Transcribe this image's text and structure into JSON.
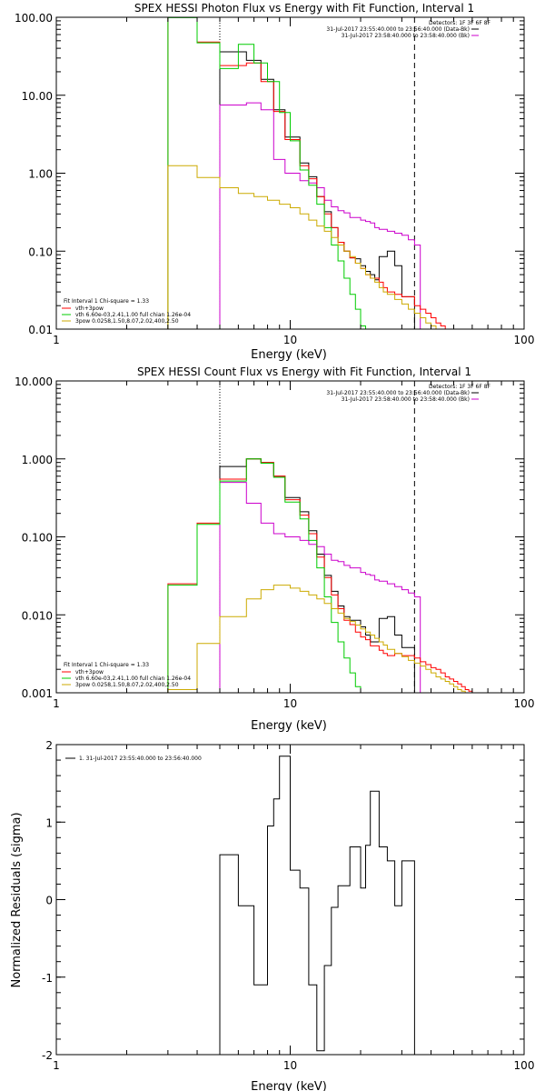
{
  "chart_data": [
    {
      "type": "line",
      "title": "SPEX HESSI Photon Flux vs Energy with Fit Function, Interval 1",
      "xlabel": "Energy (keV)",
      "ylabel": "",
      "xscale": "log",
      "yscale": "log",
      "xlim": [
        1,
        100
      ],
      "ylim": [
        0.01,
        100
      ],
      "x_ticks": [
        1,
        10,
        100
      ],
      "y_ticks": [
        0.01,
        0.1,
        1,
        10,
        100
      ],
      "x_tick_labels": [
        "1",
        "10",
        "100"
      ],
      "y_tick_labels": [
        "0.01",
        "0.10",
        "1.00",
        "10.00",
        "100.00"
      ],
      "info": [
        "Detectors: 1F 3F 6F 8F",
        "31-Jul-2017 23:55:40.000 to 23:56:40.000 (Data-Bk)",
        "31-Jul-2017 23:58:40.000 to 23:58:40.000 (Bk)"
      ],
      "legend_title": "Fit Interval 1   Chi-square = 1.33",
      "bin_edges": [
        3,
        4,
        5,
        6,
        6.5,
        7,
        7.5,
        8,
        8.5,
        9,
        9.5,
        10,
        11,
        12,
        13,
        14,
        15,
        16,
        17,
        18,
        19,
        20,
        21,
        22,
        23,
        24,
        25,
        26,
        28,
        30,
        32,
        34,
        36,
        38,
        40,
        42,
        44,
        46
      ],
      "vlines": [
        {
          "x": 5,
          "style": "dotted"
        },
        {
          "x": 34,
          "style": "dashed"
        }
      ],
      "series": [
        {
          "name": "Data-Bk",
          "color": "#000000",
          "from": 2,
          "values": [
            36,
            36,
            28,
            28,
            16,
            16,
            6.5,
            6.5,
            2.9,
            2.9,
            1.35,
            0.9,
            0.5,
            0.32,
            0.2,
            0.13,
            0.1,
            0.082,
            0.08,
            0.065,
            0.055,
            0.05,
            0.043,
            0.085,
            0.085,
            0.1,
            0.065,
            0.026,
            0.026
          ]
        },
        {
          "name": "Bk",
          "color": "#cc00cc",
          "from": 2,
          "values": [
            7.5,
            7.5,
            8,
            8,
            6.5,
            6.5,
            1.5,
            1.5,
            1.0,
            1.0,
            0.8,
            0.75,
            0.65,
            0.45,
            0.37,
            0.33,
            0.31,
            0.27,
            0.27,
            0.25,
            0.24,
            0.23,
            0.2,
            0.19,
            0.19,
            0.18,
            0.17,
            0.16,
            0.14,
            0.12
          ]
        },
        {
          "name": "vth+3pow",
          "color": "#ff0000",
          "from": 0,
          "values": [
            100,
            48,
            24,
            24,
            26,
            26,
            15,
            15,
            6.2,
            6.2,
            2.7,
            2.7,
            1.25,
            0.85,
            0.5,
            0.3,
            0.2,
            0.13,
            0.1,
            0.082,
            0.07,
            0.06,
            0.05,
            0.045,
            0.045,
            0.04,
            0.034,
            0.03,
            0.028,
            0.026,
            0.026,
            0.02,
            0.018,
            0.016,
            0.014,
            0.012,
            0.011
          ]
        },
        {
          "name": "vth 6.60e-03,2.41,1.00  full chian 1.26e-04",
          "color": "#00cc00",
          "from": 0,
          "values": [
            99,
            47,
            22,
            45,
            45,
            26,
            26,
            15,
            15,
            6,
            6,
            2.6,
            1.1,
            0.7,
            0.4,
            0.2,
            0.12,
            0.075,
            0.045,
            0.028,
            0.018,
            0.011
          ]
        },
        {
          "name": "3pow 0.0258,1.50,8.07,2.02,400,2.50",
          "color": "#ccaa00",
          "from": 0,
          "values": [
            1.25,
            0.88,
            0.65,
            0.55,
            0.55,
            0.5,
            0.5,
            0.45,
            0.45,
            0.4,
            0.4,
            0.36,
            0.3,
            0.25,
            0.21,
            0.18,
            0.15,
            0.12,
            0.1,
            0.085,
            0.07,
            0.06,
            0.05,
            0.045,
            0.04,
            0.034,
            0.03,
            0.028,
            0.024,
            0.021,
            0.018,
            0.016,
            0.014,
            0.012,
            0.011,
            0.01
          ]
        }
      ]
    },
    {
      "type": "line",
      "title": "SPEX HESSI Count Flux vs Energy with Fit Function, Interval 1",
      "xlabel": "Energy (keV)",
      "ylabel": "",
      "xscale": "log",
      "yscale": "log",
      "xlim": [
        1,
        100
      ],
      "ylim": [
        0.001,
        10
      ],
      "x_ticks": [
        1,
        10,
        100
      ],
      "y_ticks": [
        0.001,
        0.01,
        0.1,
        1,
        10
      ],
      "x_tick_labels": [
        "1",
        "10",
        "100"
      ],
      "y_tick_labels": [
        "0.001",
        "0.010",
        "0.100",
        "1.000",
        "10.000"
      ],
      "info": [
        "Detectors: 1F 3F 6F 8F",
        "31-Jul-2017 23:55:40.000 to 23:56:40.000 (Data-Bk)",
        "31-Jul-2017 23:58:40.000 to 23:58:40.000 (Bk)"
      ],
      "legend_title": "Fit Interval 1   Chi-square = 1.33",
      "bin_edges": [
        3,
        4,
        5,
        6,
        6.5,
        7,
        7.5,
        8,
        8.5,
        9,
        9.5,
        10,
        11,
        12,
        13,
        14,
        15,
        16,
        17,
        18,
        19,
        20,
        21,
        22,
        23,
        24,
        25,
        26,
        28,
        30,
        32,
        34,
        36,
        38,
        40,
        42,
        44,
        46,
        48,
        50,
        52,
        54,
        56,
        58,
        60,
        62,
        64,
        66
      ],
      "vlines": [
        {
          "x": 5,
          "style": "dotted"
        },
        {
          "x": 34,
          "style": "dashed"
        }
      ],
      "series": [
        {
          "name": "Data-Bk",
          "color": "#000000",
          "from": 2,
          "values": [
            0.8,
            0.8,
            1.0,
            1.0,
            0.9,
            0.9,
            0.6,
            0.6,
            0.32,
            0.32,
            0.21,
            0.12,
            0.06,
            0.032,
            0.02,
            0.013,
            0.0095,
            0.0085,
            0.0085,
            0.007,
            0.0055,
            0.0045,
            0.0045,
            0.009,
            0.009,
            0.0095,
            0.0055,
            0.0038,
            0.0038
          ]
        },
        {
          "name": "Bk",
          "color": "#cc00cc",
          "from": 2,
          "values": [
            0.5,
            0.5,
            0.27,
            0.27,
            0.15,
            0.15,
            0.11,
            0.11,
            0.1,
            0.1,
            0.09,
            0.08,
            0.075,
            0.06,
            0.05,
            0.048,
            0.043,
            0.04,
            0.04,
            0.035,
            0.033,
            0.032,
            0.028,
            0.027,
            0.027,
            0.025,
            0.023,
            0.021,
            0.019,
            0.017
          ]
        },
        {
          "name": "vth+3pow",
          "color": "#ff0000",
          "from": 0,
          "values": [
            0.025,
            0.15,
            0.55,
            0.55,
            1.0,
            1.0,
            0.9,
            0.9,
            0.6,
            0.6,
            0.3,
            0.3,
            0.19,
            0.11,
            0.055,
            0.03,
            0.018,
            0.012,
            0.0085,
            0.0075,
            0.006,
            0.0052,
            0.0048,
            0.004,
            0.004,
            0.0035,
            0.0032,
            0.003,
            0.0032,
            0.003,
            0.003,
            0.0028,
            0.0025,
            0.0023,
            0.0021,
            0.002,
            0.0018,
            0.0016,
            0.0015,
            0.0014,
            0.0013,
            0.0012,
            0.0011,
            0.00105
          ]
        },
        {
          "name": "vth 6.60e-03,2.41,1.00  full chian 1.26e-04",
          "color": "#00cc00",
          "from": 0,
          "values": [
            0.024,
            0.145,
            0.52,
            0.52,
            1.0,
            1.0,
            0.88,
            0.88,
            0.58,
            0.58,
            0.28,
            0.28,
            0.17,
            0.09,
            0.04,
            0.017,
            0.008,
            0.0045,
            0.0028,
            0.0018,
            0.0012,
            0.001
          ]
        },
        {
          "name": "3pow 0.0258,1.50,8.07,2.02,400,2.50",
          "color": "#ccaa00",
          "from": 0,
          "values": [
            0.0011,
            0.0043,
            0.0095,
            0.0095,
            0.016,
            0.016,
            0.021,
            0.021,
            0.024,
            0.024,
            0.024,
            0.022,
            0.02,
            0.018,
            0.016,
            0.014,
            0.012,
            0.0105,
            0.009,
            0.0082,
            0.0074,
            0.0066,
            0.006,
            0.0055,
            0.005,
            0.0045,
            0.0041,
            0.0036,
            0.0032,
            0.0029,
            0.0026,
            0.0024,
            0.0022,
            0.002,
            0.0018,
            0.0016,
            0.0015,
            0.0014,
            0.0013,
            0.0012,
            0.0011,
            0.00105,
            0.001
          ]
        }
      ]
    },
    {
      "type": "line",
      "title": "",
      "xlabel": "Energy (keV)",
      "ylabel": "Normalized Residuals (sigma)",
      "xscale": "log",
      "yscale": "linear",
      "xlim": [
        1,
        100
      ],
      "ylim": [
        -2,
        2
      ],
      "x_ticks": [
        1,
        10,
        100
      ],
      "y_ticks": [
        -2,
        -1,
        0,
        1,
        2
      ],
      "x_tick_labels": [
        "1",
        "10",
        "100"
      ],
      "y_tick_labels": [
        "-2",
        "-1",
        "0",
        "1",
        "2"
      ],
      "legend": "1. 31-Jul-2017 23:55:40.000 to 23:56:40.000",
      "bin_edges": [
        5,
        6,
        7,
        8,
        8.5,
        9,
        10,
        11,
        12,
        13,
        14,
        15,
        16,
        18,
        20,
        21,
        22,
        24,
        26,
        28,
        30,
        32,
        34
      ],
      "series": [
        {
          "name": "1. 31-Jul-2017 23:55:40.000 to 23:56:40.000",
          "color": "#000000",
          "from": 0,
          "values": [
            0.58,
            -0.08,
            -1.1,
            0.95,
            1.3,
            1.85,
            0.38,
            0.15,
            -1.1,
            -1.95,
            -0.85,
            -0.1,
            0.18,
            0.68,
            0.15,
            0.7,
            1.4,
            0.68,
            0.5,
            -0.08,
            0.5,
            0.5
          ]
        }
      ]
    }
  ]
}
